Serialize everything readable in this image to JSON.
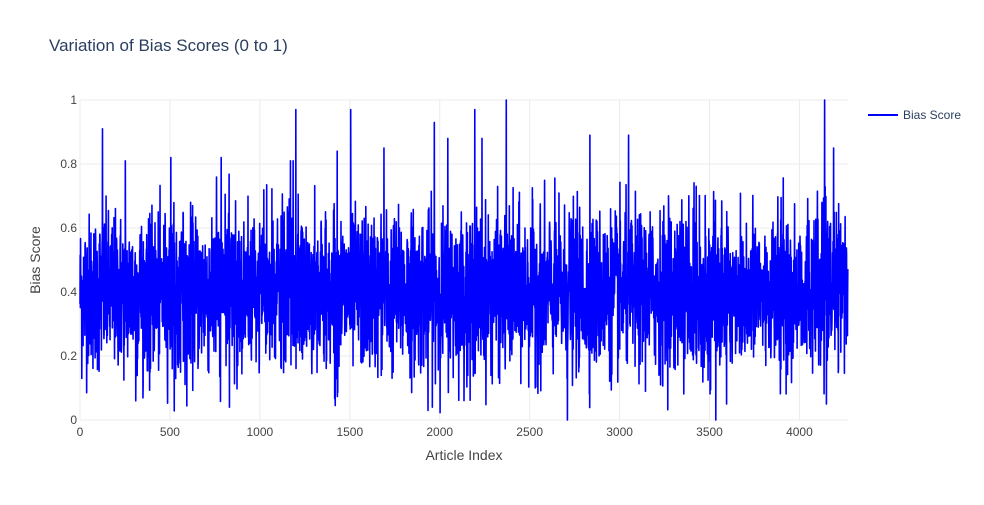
{
  "chart_data": {
    "type": "line",
    "title": "Variation of Bias Scores (0 to 1)",
    "xlabel": "Article Index",
    "ylabel": "Bias Score",
    "xlim": [
      0,
      4270
    ],
    "ylim": [
      0,
      1
    ],
    "xticks": [
      "0",
      "500",
      "1000",
      "1500",
      "2000",
      "2500",
      "3000",
      "3500",
      "4000"
    ],
    "xtick_values": [
      0,
      500,
      1000,
      1500,
      2000,
      2500,
      3000,
      3500,
      4000
    ],
    "yticks": [
      "0",
      "0.2",
      "0.4",
      "0.6",
      "0.8",
      "1"
    ],
    "ytick_values": [
      0,
      0.2,
      0.4,
      0.6,
      0.8,
      1
    ],
    "grid": true,
    "legend_position": "top-right",
    "series": [
      {
        "name": "Bias Score",
        "color": "#0000ff",
        "n_points": 4270,
        "mean": 0.4,
        "typical_range": [
          0.2,
          0.65
        ],
        "peaks": [
          {
            "x": 125,
            "y": 0.91
          },
          {
            "x": 252,
            "y": 0.81
          },
          {
            "x": 505,
            "y": 0.82
          },
          {
            "x": 785,
            "y": 0.82
          },
          {
            "x": 1170,
            "y": 0.81
          },
          {
            "x": 1185,
            "y": 0.81
          },
          {
            "x": 1200,
            "y": 0.97
          },
          {
            "x": 1430,
            "y": 0.84
          },
          {
            "x": 1505,
            "y": 0.97
          },
          {
            "x": 1690,
            "y": 0.85
          },
          {
            "x": 1970,
            "y": 0.93
          },
          {
            "x": 2045,
            "y": 0.88
          },
          {
            "x": 2195,
            "y": 0.97
          },
          {
            "x": 2235,
            "y": 0.88
          },
          {
            "x": 2370,
            "y": 1.0
          },
          {
            "x": 2835,
            "y": 0.89
          },
          {
            "x": 3050,
            "y": 0.89
          },
          {
            "x": 4140,
            "y": 1.0
          },
          {
            "x": 4190,
            "y": 0.85
          }
        ],
        "troughs": [
          {
            "x": 10,
            "y": 0.13
          },
          {
            "x": 310,
            "y": 0.06
          },
          {
            "x": 1935,
            "y": 0.03
          },
          {
            "x": 2710,
            "y": 0.0
          },
          {
            "x": 3535,
            "y": 0.0
          },
          {
            "x": 3595,
            "y": 0.05
          },
          {
            "x": 4150,
            "y": 0.05
          }
        ]
      }
    ]
  }
}
